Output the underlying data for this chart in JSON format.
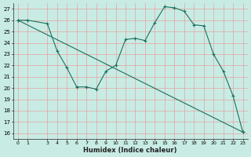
{
  "xlabel": "Humidex (Indice chaleur)",
  "background_color": "#c8ece4",
  "grid_color": "#e8a0a0",
  "line_color": "#1a7060",
  "ylim_min": 15.5,
  "ylim_max": 27.5,
  "yticks": [
    16,
    17,
    18,
    19,
    20,
    21,
    22,
    23,
    24,
    25,
    26,
    27
  ],
  "xticks": [
    0,
    1,
    3,
    4,
    5,
    6,
    7,
    8,
    9,
    10,
    11,
    12,
    13,
    14,
    15,
    16,
    17,
    18,
    19,
    20,
    21,
    22,
    23
  ],
  "xlim_min": -0.5,
  "xlim_max": 23.5,
  "line1_x": [
    0,
    1,
    3,
    4,
    5,
    6,
    7,
    8,
    9,
    10,
    11,
    12,
    13,
    14,
    15,
    16,
    17,
    18,
    19,
    20,
    21,
    22,
    23
  ],
  "line1_y": [
    26,
    26,
    25.7,
    23.3,
    21.8,
    20.1,
    20.1,
    19.9,
    21.5,
    22.0,
    24.3,
    24.4,
    24.2,
    25.8,
    27.2,
    27.1,
    26.8,
    25.6,
    25.5,
    23.0,
    21.5,
    19.3,
    16.1
  ],
  "line2_x": [
    0,
    23
  ],
  "line2_y": [
    26,
    16.1
  ]
}
